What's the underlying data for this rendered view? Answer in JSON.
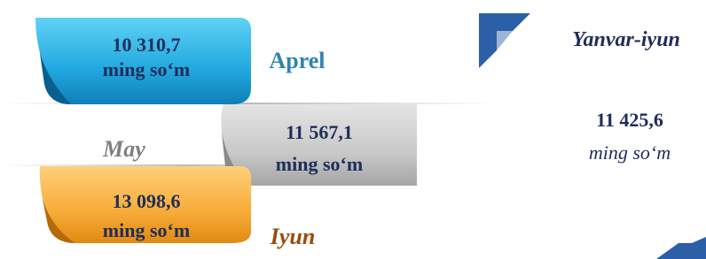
{
  "items": [
    {
      "value": "10 310,7",
      "unit": "ming so‘m",
      "month": "Aprel"
    },
    {
      "value": "11 567,1",
      "unit": "ming so‘m",
      "month": "May"
    },
    {
      "value": "13 098,6",
      "unit": "ming so‘m",
      "month": "Iyun"
    }
  ],
  "summary": {
    "period": "Yanvar-iyun",
    "value": "11 425,6",
    "unit": "ming so‘m"
  }
}
